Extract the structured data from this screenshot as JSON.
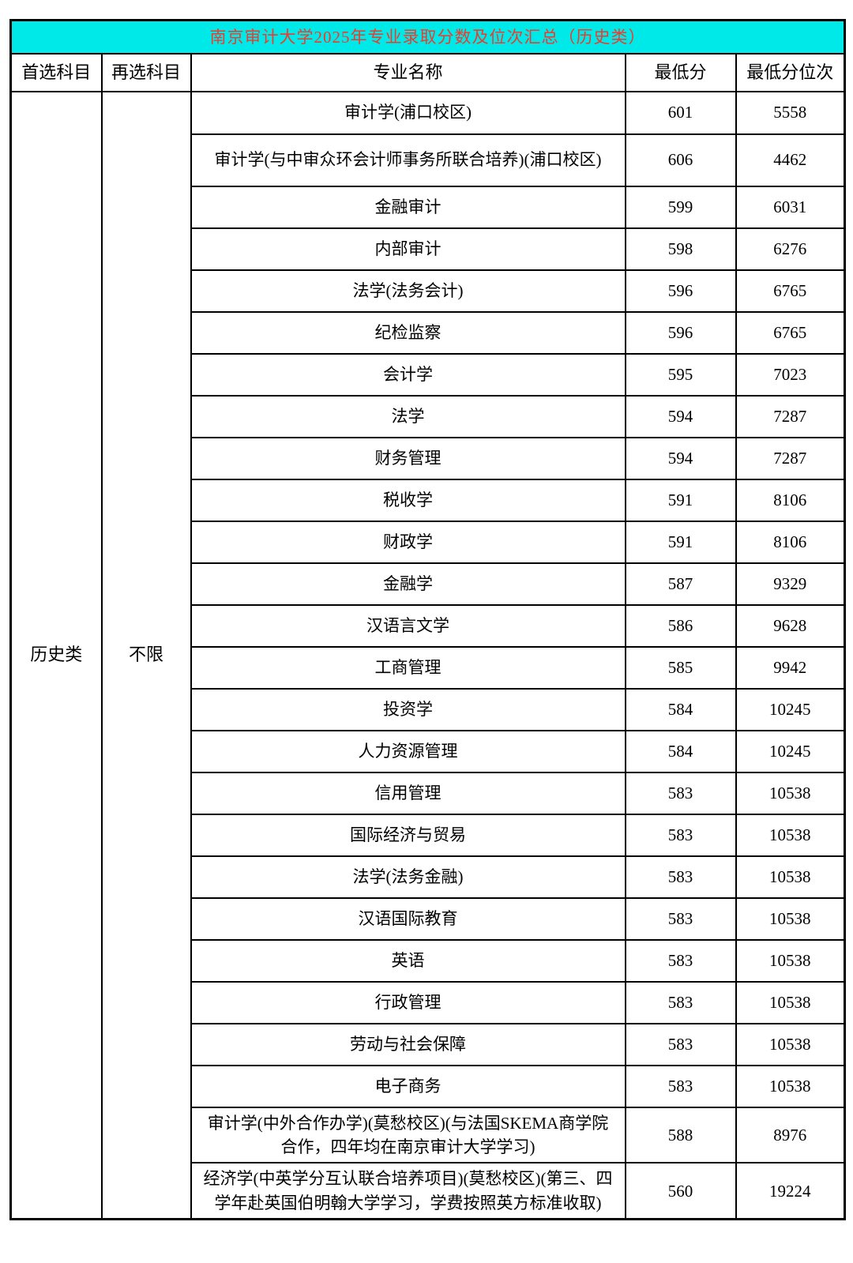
{
  "title": "南京审计大学2025年专业录取分数及位次汇总（历史类）",
  "columns": [
    "首选科目",
    "再选科目",
    "专业名称",
    "最低分",
    "最低分位次"
  ],
  "first_subject": "历史类",
  "second_subject": "不限",
  "rows": [
    {
      "major": "审计学(浦口校区)",
      "score": "601",
      "rank": "5558"
    },
    {
      "major": "审计学(与中审众环会计师事务所联合培养)(浦口校区)",
      "score": "606",
      "rank": "4462"
    },
    {
      "major": "金融审计",
      "score": "599",
      "rank": "6031"
    },
    {
      "major": "内部审计",
      "score": "598",
      "rank": "6276"
    },
    {
      "major": "法学(法务会计)",
      "score": "596",
      "rank": "6765"
    },
    {
      "major": "纪检监察",
      "score": "596",
      "rank": "6765"
    },
    {
      "major": "会计学",
      "score": "595",
      "rank": "7023"
    },
    {
      "major": "法学",
      "score": "594",
      "rank": "7287"
    },
    {
      "major": "财务管理",
      "score": "594",
      "rank": "7287"
    },
    {
      "major": "税收学",
      "score": "591",
      "rank": "8106"
    },
    {
      "major": "财政学",
      "score": "591",
      "rank": "8106"
    },
    {
      "major": "金融学",
      "score": "587",
      "rank": "9329"
    },
    {
      "major": "汉语言文学",
      "score": "586",
      "rank": "9628"
    },
    {
      "major": "工商管理",
      "score": "585",
      "rank": "9942"
    },
    {
      "major": "投资学",
      "score": "584",
      "rank": "10245"
    },
    {
      "major": "人力资源管理",
      "score": "584",
      "rank": "10245"
    },
    {
      "major": "信用管理",
      "score": "583",
      "rank": "10538"
    },
    {
      "major": "国际经济与贸易",
      "score": "583",
      "rank": "10538"
    },
    {
      "major": "法学(法务金融)",
      "score": "583",
      "rank": "10538"
    },
    {
      "major": "汉语国际教育",
      "score": "583",
      "rank": "10538"
    },
    {
      "major": "英语",
      "score": "583",
      "rank": "10538"
    },
    {
      "major": "行政管理",
      "score": "583",
      "rank": "10538"
    },
    {
      "major": "劳动与社会保障",
      "score": "583",
      "rank": "10538"
    },
    {
      "major": "电子商务",
      "score": "583",
      "rank": "10538"
    },
    {
      "major": "审计学(中外合作办学)(莫愁校区)(与法国SKEMA商学院合作，四年均在南京审计大学学习)",
      "score": "588",
      "rank": "8976"
    },
    {
      "major": "经济学(中英学分互认联合培养项目)(莫愁校区)(第三、四学年赴英国伯明翰大学学习，学费按照英方标准收取)",
      "score": "560",
      "rank": "19224"
    }
  ],
  "colors": {
    "title_background": "#00e9e9",
    "title_text": "#ef3b2d",
    "body_text": "#000000",
    "border": "#000000",
    "page_background": "#ffffff"
  }
}
